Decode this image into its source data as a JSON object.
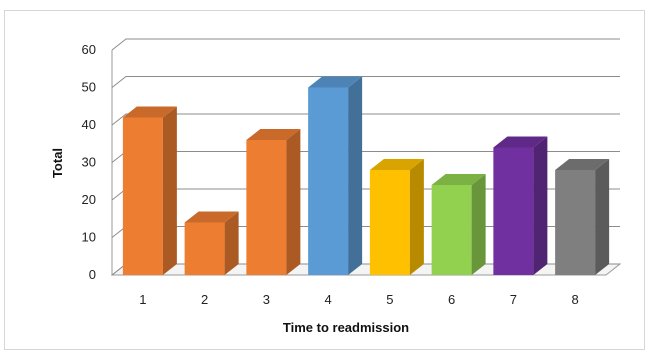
{
  "chart_data": {
    "type": "bar",
    "categories": [
      "1",
      "2",
      "3",
      "4",
      "5",
      "6",
      "7",
      "8"
    ],
    "values": [
      42,
      14,
      36,
      50,
      28,
      24,
      34,
      28
    ],
    "bar_colors": [
      "#ED7D31",
      "#ED7D31",
      "#ED7D31",
      "#5B9BD5",
      "#FFC000",
      "#92D050",
      "#7030A0",
      "#7F7F7F"
    ],
    "title": "",
    "xlabel": "Time to readmission",
    "ylabel": "Total",
    "ylim": [
      0,
      60
    ],
    "yticks": [
      "0",
      "10",
      "20",
      "30",
      "40",
      "50",
      "60"
    ],
    "grid": true,
    "style": "3d-column",
    "legend": "none"
  }
}
